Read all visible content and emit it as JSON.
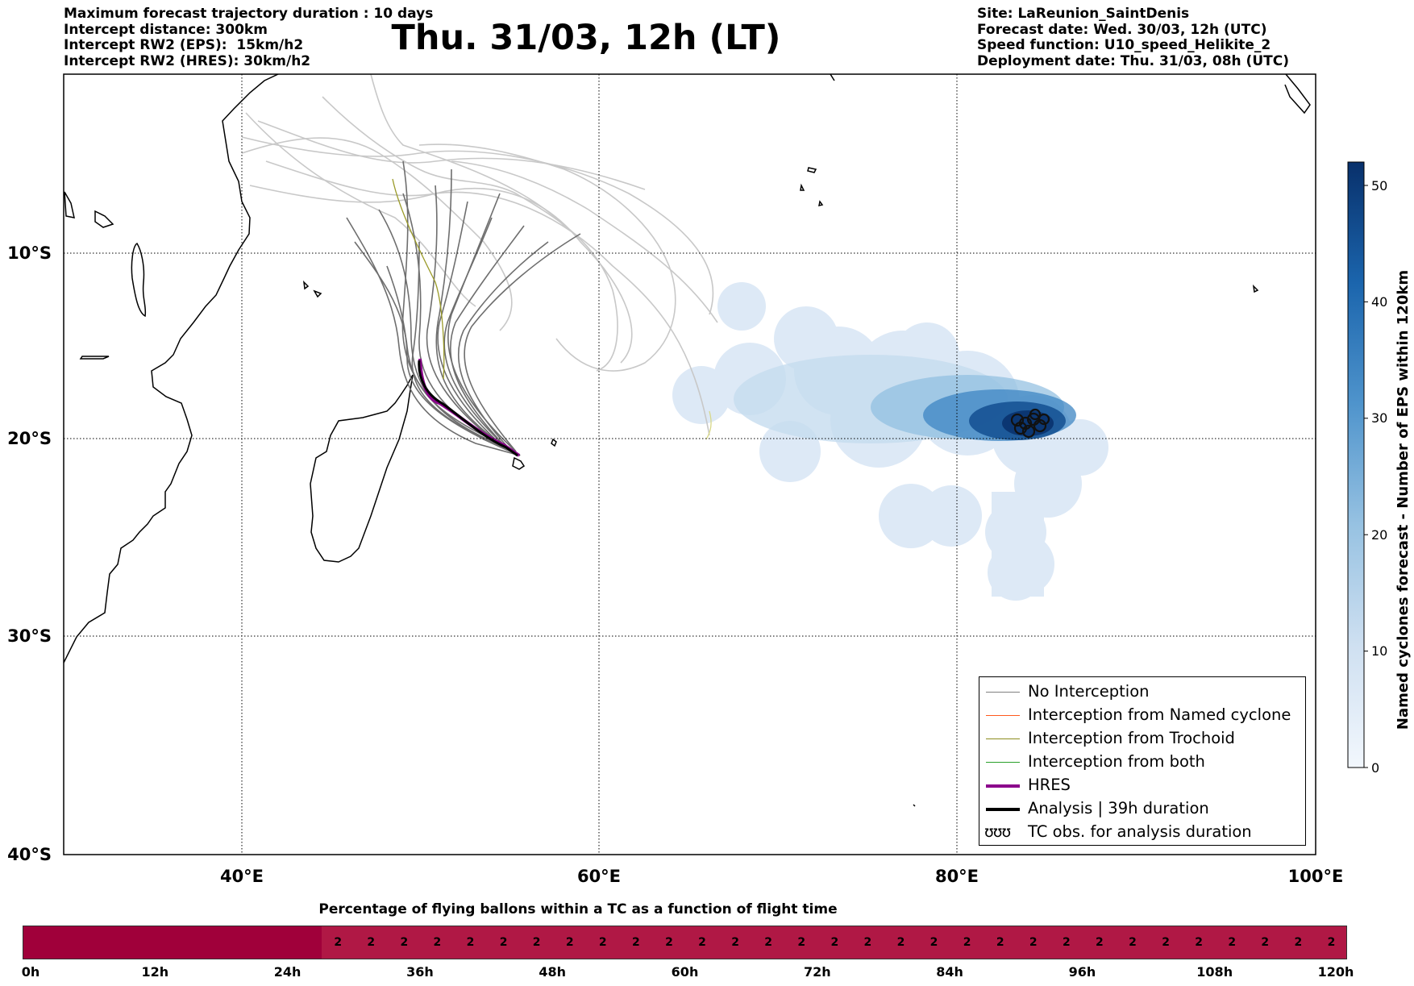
{
  "header_left": [
    "Maximum forecast trajectory duration : 10 days",
    "Intercept distance: 300km",
    "Intercept RW2 (EPS):  15km/h2",
    "Intercept RW2 (HRES): 30km/h2"
  ],
  "header_right": [
    "Site: LaReunion_SaintDenis",
    "Forecast date: Wed. 30/03, 12h (UTC)",
    "Speed function: U10_speed_Helikite_2",
    "Deployment date: Thu. 31/03, 08h (UTC)"
  ],
  "title": "Thu. 31/03, 12h (LT)",
  "map": {
    "lon_ticks": [
      "40°E",
      "60°E",
      "80°E",
      "100°E"
    ],
    "lat_ticks": [
      "10°S",
      "20°S",
      "30°S",
      "40°S"
    ],
    "lon_range": [
      30,
      100
    ],
    "lat_range": [
      -40,
      2
    ],
    "grid": "dotted"
  },
  "colorbar": {
    "label": "Named cyclones forecast - Number of EPS within 120km",
    "ticks": [
      "0",
      "10",
      "20",
      "30",
      "40",
      "50"
    ],
    "range": [
      0,
      52
    ]
  },
  "legend": [
    {
      "label": "No Interception",
      "color": "#808080",
      "style": "line-thin"
    },
    {
      "label": "Interception from Named cyclone",
      "color": "#ff5a1e",
      "style": "line-thin"
    },
    {
      "label": "Interception from Trochoid",
      "color": "#8c8c1e",
      "style": "line-thin"
    },
    {
      "label": "Interception from both",
      "color": "#2aa02a",
      "style": "line-thin"
    },
    {
      "label": "HRES",
      "color": "#8b008b",
      "style": "line-thick"
    },
    {
      "label": "Analysis | 39h duration",
      "color": "#000000",
      "style": "line-thick"
    },
    {
      "label": "TC obs. for analysis duration",
      "color": "#000000",
      "style": "symbol",
      "symbol": "ʊʊʊ"
    }
  ],
  "flight_time": {
    "title": "Percentage of flying ballons within a TC as a function of flight time",
    "ticks": [
      "0h",
      "12h",
      "24h",
      "36h",
      "48h",
      "60h",
      "72h",
      "84h",
      "96h",
      "108h",
      "120h"
    ],
    "dark_color": "#a0003a",
    "light_color": "#b01845",
    "cell_value": "2",
    "cells_start_hour": 27,
    "end_hour": 120
  }
}
